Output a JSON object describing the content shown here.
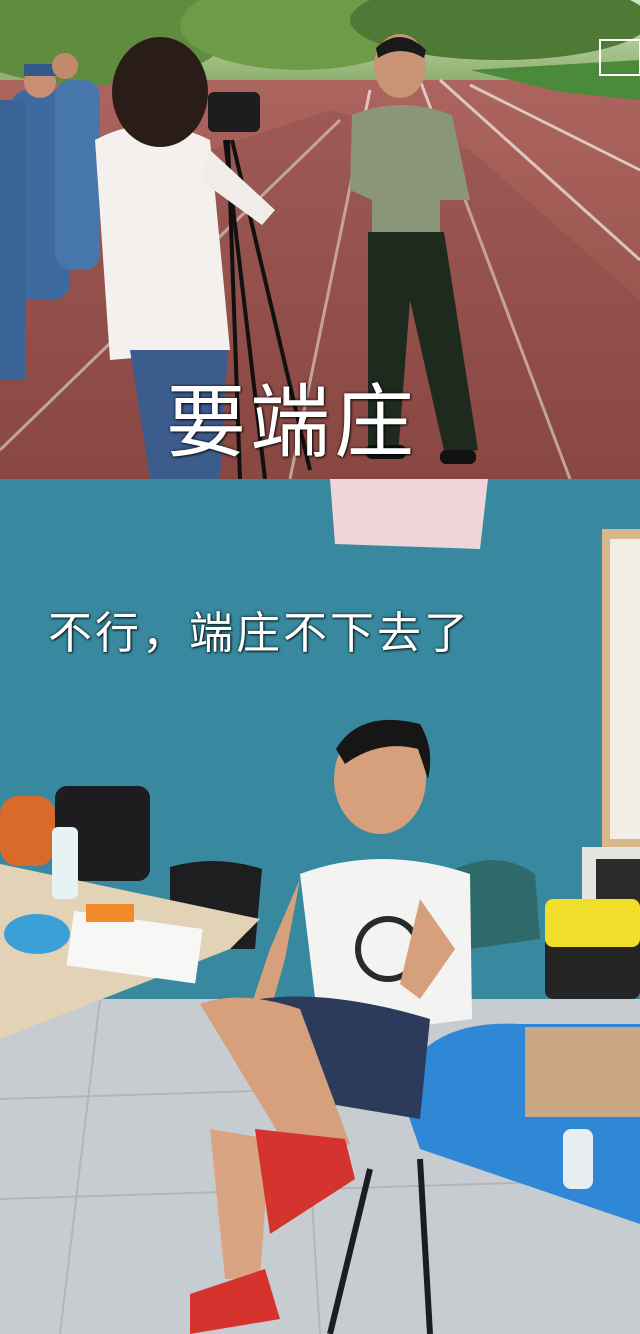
{
  "panels": [
    {
      "caption": "要端庄"
    },
    {
      "caption": "不行，端庄不下去了"
    }
  ]
}
